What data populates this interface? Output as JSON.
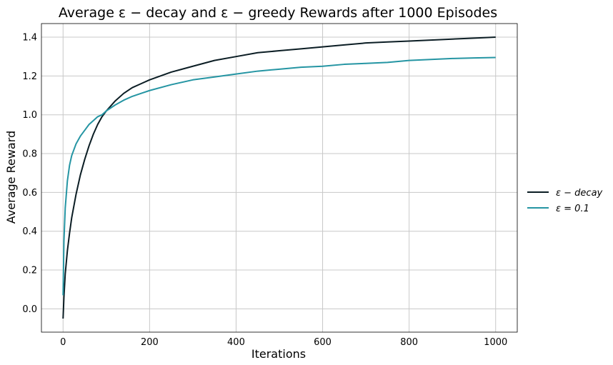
{
  "chart_data": {
    "type": "line",
    "title": "Average ε − decay and ε − greedy Rewards after 1000 Episodes",
    "xlabel": "Iterations",
    "ylabel": "Average Reward",
    "xlim": [
      -50,
      1050
    ],
    "ylim": [
      -0.12,
      1.47
    ],
    "xticks": [
      0,
      200,
      400,
      600,
      800,
      1000
    ],
    "yticks": [
      0.0,
      0.2,
      0.4,
      0.6,
      0.8,
      1.0,
      1.2,
      1.4
    ],
    "grid": true,
    "legend": "right, outside plot",
    "series": [
      {
        "name": "ε − decay",
        "color": "#0b1d24",
        "x": [
          0,
          2,
          5,
          10,
          15,
          20,
          30,
          40,
          50,
          60,
          70,
          80,
          90,
          100,
          120,
          140,
          160,
          180,
          200,
          250,
          300,
          350,
          400,
          450,
          500,
          550,
          600,
          650,
          700,
          750,
          800,
          850,
          900,
          950,
          1000
        ],
        "y": [
          -0.05,
          0.06,
          0.18,
          0.3,
          0.39,
          0.47,
          0.59,
          0.69,
          0.77,
          0.84,
          0.9,
          0.95,
          0.99,
          1.02,
          1.07,
          1.11,
          1.14,
          1.16,
          1.18,
          1.22,
          1.25,
          1.28,
          1.3,
          1.32,
          1.33,
          1.34,
          1.35,
          1.36,
          1.37,
          1.375,
          1.38,
          1.385,
          1.39,
          1.395,
          1.4
        ]
      },
      {
        "name": "ε = 0.1",
        "color": "#2595a3",
        "x": [
          0,
          2,
          5,
          10,
          15,
          20,
          30,
          40,
          50,
          60,
          70,
          80,
          90,
          100,
          120,
          140,
          160,
          180,
          200,
          250,
          300,
          350,
          400,
          450,
          500,
          550,
          600,
          650,
          700,
          750,
          800,
          850,
          900,
          950,
          1000
        ],
        "y": [
          0.07,
          0.35,
          0.52,
          0.66,
          0.74,
          0.79,
          0.85,
          0.89,
          0.92,
          0.95,
          0.97,
          0.99,
          1.0,
          1.02,
          1.05,
          1.075,
          1.095,
          1.11,
          1.125,
          1.155,
          1.18,
          1.195,
          1.21,
          1.225,
          1.235,
          1.245,
          1.25,
          1.26,
          1.265,
          1.27,
          1.28,
          1.285,
          1.29,
          1.293,
          1.295
        ]
      }
    ]
  }
}
